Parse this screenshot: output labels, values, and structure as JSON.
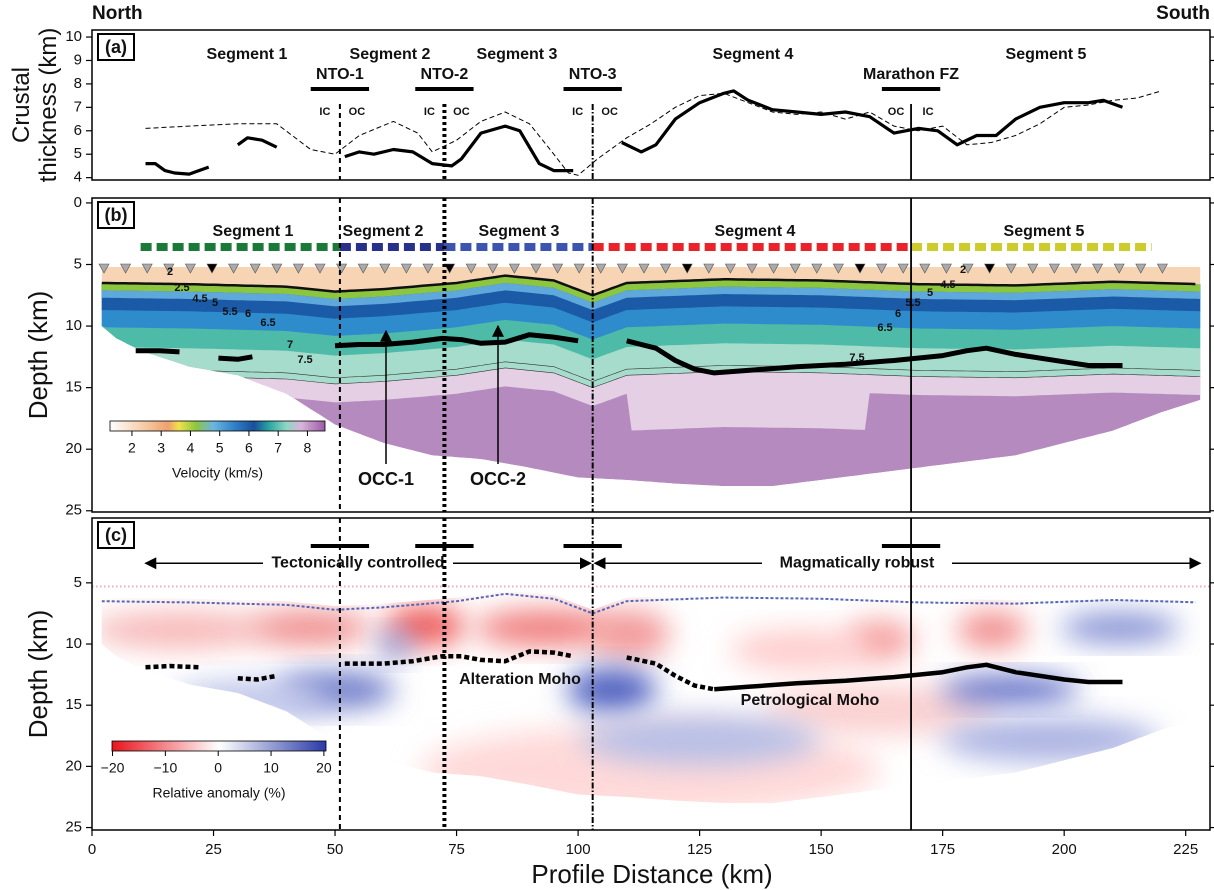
{
  "chart_data": [
    {
      "type": "line",
      "panel_label": "(a)",
      "ylabel": [
        "Crustal",
        "thickness (km)"
      ],
      "corner_labels": [
        "North",
        "South"
      ],
      "segments": [
        "Segment 1",
        "Segment 2",
        "Segment 3",
        "Segment 4",
        "Segment 5"
      ],
      "discontinuities": [
        {
          "name": "NTO-1",
          "x": 51,
          "sides": [
            "IC",
            "OC"
          ]
        },
        {
          "name": "NTO-2",
          "x": 72.5,
          "sides": [
            "IC",
            "OC"
          ]
        },
        {
          "name": "NTO-3",
          "x": 103,
          "sides": [
            "IC",
            "OC"
          ]
        },
        {
          "name": "Marathon FZ",
          "x": 168.5,
          "sides": [
            "OC",
            "IC"
          ]
        }
      ],
      "xlim": [
        0,
        230
      ],
      "ylim": [
        3.9,
        10.3
      ],
      "yticks": [
        4,
        5,
        6,
        7,
        8,
        9,
        10
      ],
      "series": [
        {
          "color": "#000000",
          "style": "solid",
          "x": [
            11,
            13,
            15,
            17,
            20,
            22,
            24,
            27,
            30,
            32,
            35,
            38,
            45,
            52,
            55,
            58,
            62,
            66,
            70,
            74,
            76,
            80,
            85,
            88,
            92,
            95,
            99,
            105,
            109,
            113,
            116,
            120,
            125,
            130,
            132,
            135,
            140,
            145,
            150,
            155,
            160,
            165,
            170,
            174,
            178,
            182,
            186,
            190,
            195,
            200,
            205,
            208,
            212
          ],
          "values": [
            4.6,
            4.6,
            4.3,
            4.2,
            4.15,
            4.3,
            4.45,
            null,
            5.4,
            5.7,
            5.6,
            5.3,
            null,
            4.9,
            5.1,
            5.0,
            5.2,
            5.1,
            4.6,
            4.5,
            4.8,
            5.9,
            6.2,
            6.0,
            4.6,
            4.3,
            4.3,
            null,
            5.5,
            5.1,
            5.4,
            6.5,
            7.2,
            7.6,
            7.7,
            7.3,
            6.9,
            6.8,
            6.7,
            6.8,
            6.6,
            5.9,
            6.1,
            6.0,
            5.4,
            5.8,
            5.8,
            6.5,
            7.0,
            7.2,
            7.2,
            7.3,
            7.0
          ]
        },
        {
          "color": "#000000",
          "style": "dashed",
          "x": [
            11,
            20,
            30,
            38,
            45,
            50,
            55,
            62,
            67,
            70,
            75,
            80,
            85,
            90,
            95,
            98,
            100,
            104,
            110,
            115,
            120,
            125,
            130,
            135,
            140,
            145,
            150,
            155,
            160,
            165,
            170,
            175,
            180,
            185,
            190,
            195,
            200,
            205,
            210,
            215,
            220
          ],
          "values": [
            6.1,
            6.2,
            6.3,
            6.3,
            5.2,
            5.0,
            5.8,
            6.4,
            5.9,
            5.1,
            5.6,
            6.4,
            6.8,
            6.3,
            5.0,
            4.2,
            4.1,
            4.8,
            5.7,
            6.3,
            7.0,
            7.5,
            7.6,
            7.2,
            6.8,
            6.7,
            6.8,
            6.5,
            6.8,
            6.2,
            6.0,
            6.2,
            5.4,
            5.5,
            5.8,
            6.3,
            7.0,
            7.1,
            7.3,
            7.4,
            7.7
          ]
        }
      ]
    },
    {
      "type": "tomography",
      "panel_label": "(b)",
      "ylabel": "Depth (km)",
      "segments": [
        {
          "name": "Segment 1",
          "color": "#1b7a3a"
        },
        {
          "name": "Segment 2",
          "color": "#27308a"
        },
        {
          "name": "Segment 3",
          "color": "#3a54b0"
        },
        {
          "name": "Segment 4",
          "color": "#e8232a"
        },
        {
          "name": "Segment 5",
          "color": "#cccc2a"
        }
      ],
      "contour_labels": [
        2,
        2.5,
        4.5,
        5,
        5.5,
        6,
        6.5,
        7,
        7.5,
        2,
        4.5,
        5,
        5.5,
        6,
        6.5,
        7.5
      ],
      "annotations": [
        "OCC-1",
        "OCC-2"
      ],
      "colorbar": {
        "label": "Velocity (km/s)",
        "lim": [
          1.25,
          8.6
        ],
        "ticks": [
          2,
          3,
          4,
          5,
          6,
          7,
          8
        ]
      },
      "xlim": [
        0,
        230
      ],
      "ylim": [
        -0.4,
        25.1
      ],
      "yticks": [
        0,
        5,
        10,
        15,
        20,
        25
      ],
      "series": [
        {
          "color": "#000000",
          "x": [
            9,
            14,
            18,
            22,
            26,
            30,
            33,
            40,
            50,
            55,
            60,
            66,
            72,
            76,
            80,
            85,
            90,
            95,
            100,
            105,
            110,
            116,
            120,
            124,
            128,
            135,
            145,
            155,
            165,
            175,
            180,
            184,
            190,
            200,
            205,
            212
          ],
          "values": [
            12.0,
            12.0,
            12.1,
            null,
            12.6,
            12.7,
            12.5,
            null,
            11.6,
            11.5,
            11.5,
            11.3,
            11.0,
            11.1,
            11.4,
            11.3,
            10.7,
            10.9,
            11.2,
            null,
            11.2,
            11.8,
            12.8,
            13.5,
            13.8,
            13.6,
            13.3,
            13.1,
            12.8,
            12.4,
            12.0,
            11.8,
            12.3,
            12.9,
            13.2,
            13.2
          ]
        }
      ]
    },
    {
      "type": "tomography",
      "panel_label": "(c)",
      "ylabel": "Depth (km)",
      "xlabel": "Profile Distance (km)",
      "regimes": [
        "Tectonically controlled",
        "Magmatically robust"
      ],
      "colorbar": {
        "label": "Relative anomaly (%)",
        "lim": [
          -20.1,
          20.4
        ],
        "ticks": [
          {
            "value": -20,
            "label": "−20"
          },
          {
            "value": -10,
            "label": "−10"
          },
          0,
          10,
          20
        ]
      },
      "xlim": [
        0,
        230
      ],
      "xticks": [
        0,
        25,
        50,
        75,
        100,
        125,
        150,
        175,
        200,
        225
      ],
      "ylim": [
        -0.3,
        25.2
      ],
      "yticks": [
        5,
        10,
        15,
        20,
        25
      ],
      "series": [
        {
          "name": "Alteration Moho",
          "color": "#000000",
          "style": "dashed",
          "x": [
            11,
            16,
            22,
            26,
            30,
            34,
            38,
            45,
            52,
            60,
            66,
            72,
            76,
            80,
            85,
            90,
            95,
            99,
            105,
            110,
            116,
            120,
            124,
            128
          ],
          "values": [
            11.9,
            11.8,
            11.9,
            null,
            12.8,
            12.9,
            12.6,
            null,
            11.6,
            11.6,
            11.4,
            11.0,
            11.0,
            11.3,
            11.4,
            10.6,
            10.7,
            11.0,
            null,
            11.1,
            11.6,
            12.6,
            13.4,
            13.7
          ]
        },
        {
          "name": "Petrological Moho",
          "color": "#000000",
          "style": "solid",
          "x": [
            128,
            135,
            145,
            155,
            165,
            175,
            180,
            184,
            190,
            200,
            205,
            212
          ],
          "values": [
            13.7,
            13.5,
            13.2,
            13.0,
            12.7,
            12.3,
            11.9,
            11.7,
            12.3,
            12.9,
            13.1,
            13.1
          ]
        }
      ]
    }
  ]
}
